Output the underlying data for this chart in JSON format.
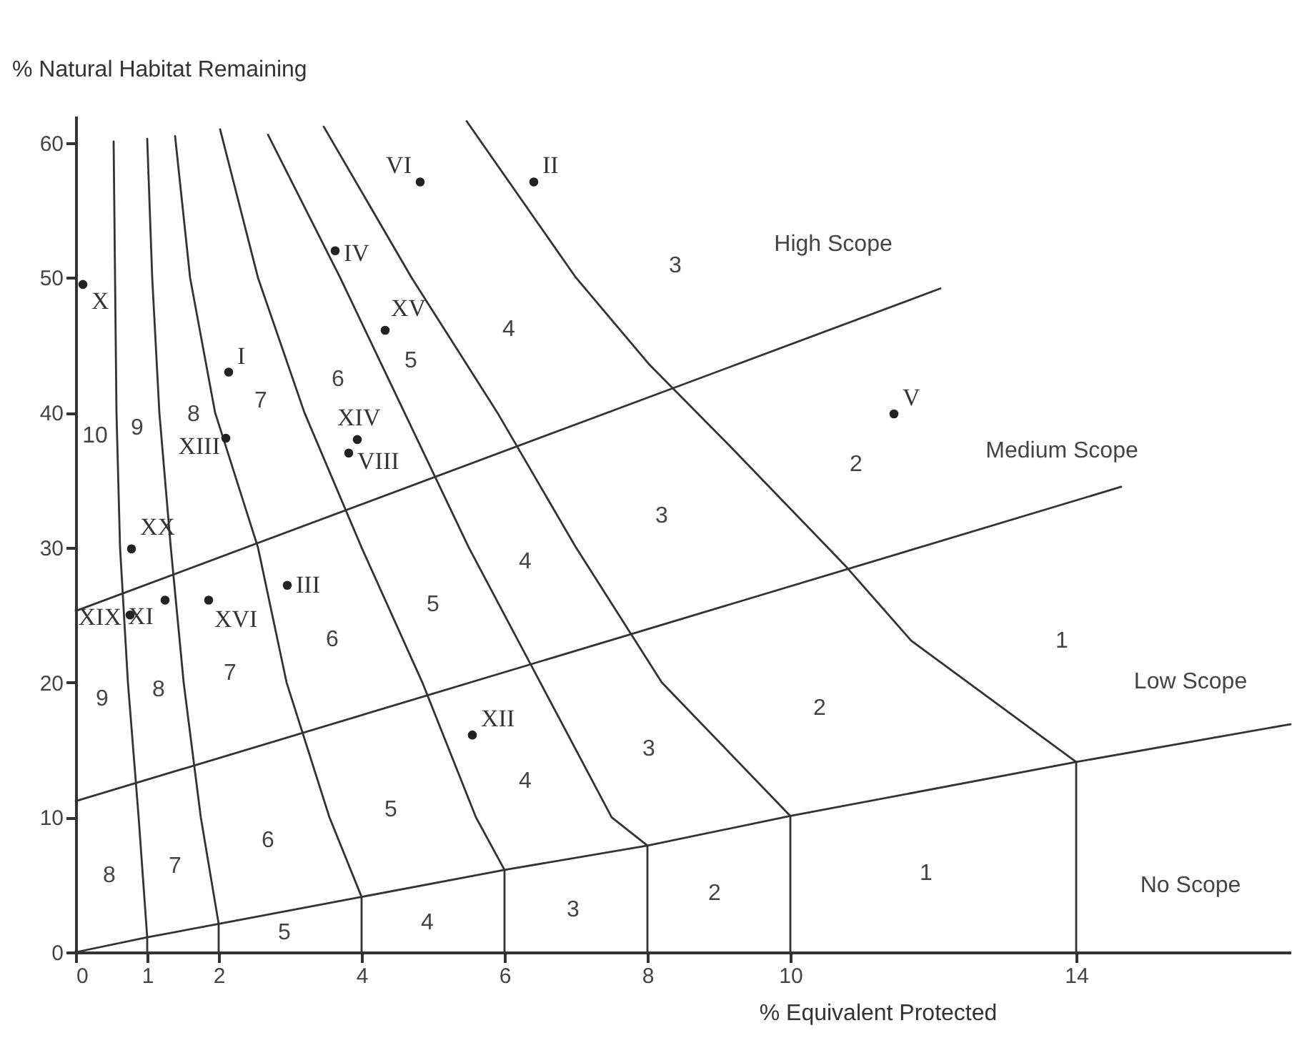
{
  "chart_data": {
    "type": "scatter",
    "xlabel": "% Equivalent Protected",
    "ylabel": "% Natural Habitat Remaining",
    "xlim": [
      0,
      17
    ],
    "ylim": [
      0,
      62
    ],
    "xticks": [
      0,
      1,
      2,
      4,
      6,
      8,
      10,
      14
    ],
    "yticks": [
      0,
      10,
      20,
      30,
      40,
      50,
      60
    ],
    "grid": false,
    "series": [
      {
        "marker": "circle",
        "color": "#222222",
        "x": [
          0.1,
          4.82,
          6.41,
          3.63,
          4.33,
          2.14,
          2.1,
          3.94,
          3.82,
          0.78,
          0.76,
          1.25,
          1.86,
          2.96,
          5.55,
          11.45
        ],
        "values": [
          49.5,
          57.1,
          57.1,
          52.0,
          46.1,
          43.0,
          38.1,
          38.0,
          37.0,
          29.9,
          25.0,
          26.1,
          26.1,
          27.2,
          16.1,
          39.9
        ],
        "value_labels": [
          "X",
          "VI",
          "II",
          "IV",
          "XV",
          "I",
          "XIII",
          "XIV",
          "VIII",
          "XX",
          "XIX",
          "XI",
          "XVI",
          "III",
          "XII",
          "V"
        ]
      },
      {
        "type": "line",
        "color": "#333333",
        "x": [
          0.53,
          0.55,
          0.57,
          0.62,
          0.73,
          0.88,
          1,
          1
        ],
        "values": [
          60.1,
          50,
          40,
          30,
          20,
          10,
          1.1,
          0
        ]
      },
      {
        "type": "line",
        "color": "#333333",
        "x": [
          1.0,
          1.07,
          1.17,
          1.33,
          1.51,
          1.75,
          2,
          2
        ],
        "values": [
          60.3,
          50,
          40,
          30,
          20,
          10,
          2.1,
          0
        ]
      },
      {
        "type": "line",
        "color": "#333333",
        "x": [
          1.39,
          1.6,
          1.95,
          2.55,
          2.95,
          3.55,
          4,
          4
        ],
        "values": [
          60.5,
          50,
          40,
          30,
          20,
          10,
          4.1,
          0
        ]
      },
      {
        "type": "line",
        "color": "#333333",
        "x": [
          2.02,
          2.55,
          3.2,
          4.0,
          4.85,
          5.6,
          6,
          6
        ],
        "values": [
          61,
          50,
          40,
          30,
          20,
          10,
          6.1,
          0
        ]
      },
      {
        "type": "line",
        "color": "#333333",
        "x": [
          2.69,
          3.7,
          4.6,
          5.5,
          6.5,
          7.5,
          8,
          8
        ],
        "values": [
          60.6,
          50,
          40,
          30,
          20,
          10,
          7.9,
          0
        ]
      },
      {
        "type": "line",
        "color": "#333333",
        "x": [
          3.47,
          4.7,
          5.9,
          7.0,
          8.2,
          10,
          10
        ],
        "values": [
          61.2,
          50,
          40,
          30,
          20,
          10.1,
          0
        ]
      },
      {
        "type": "line",
        "color": "#333333",
        "x": [
          5.47,
          7.0,
          8.02,
          9.14,
          10.76,
          11.69,
          14,
          14
        ],
        "values": [
          61.6,
          50,
          43.6,
          37.6,
          28.7,
          23.1,
          14.1,
          0
        ]
      },
      {
        "type": "line",
        "color": "#333333",
        "x": [
          0,
          12.1
        ],
        "values": [
          25.3,
          49.2
        ]
      },
      {
        "type": "line",
        "color": "#333333",
        "x": [
          0,
          14.63
        ],
        "values": [
          11.2,
          34.5
        ]
      },
      {
        "type": "line",
        "color": "#333333",
        "x": [
          0,
          1,
          2,
          4,
          6,
          8,
          10,
          14,
          17
        ],
        "values": [
          0,
          1.1,
          2.1,
          4.1,
          6.1,
          7.9,
          10.1,
          14.1,
          16.9
        ]
      }
    ],
    "annotations": [
      "High Scope",
      "Medium Scope",
      "Low Scope",
      "No Scope",
      "10",
      "9",
      "8",
      "7",
      "6",
      "5",
      "4",
      "3",
      "2",
      "3",
      "4",
      "5",
      "6",
      "7",
      "8",
      "9",
      "1",
      "2",
      "3",
      "4",
      "5",
      "6",
      "7",
      "8",
      "5",
      "4",
      "3",
      "2",
      "1"
    ]
  }
}
